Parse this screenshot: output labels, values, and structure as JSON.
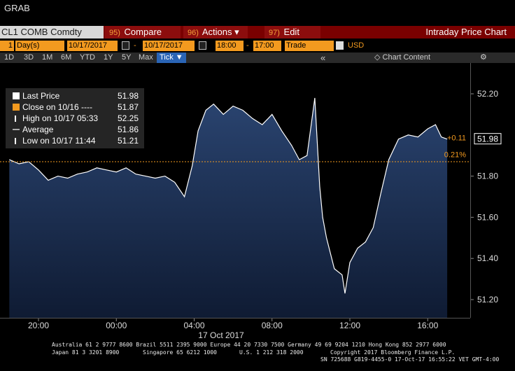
{
  "app": {
    "title": "GRAB"
  },
  "toolbar": {
    "ticker": "CL1 COMB Comdty",
    "compare_num": "95)",
    "compare": "Compare",
    "actions_num": "96)",
    "actions": "Actions",
    "edit_num": "97)",
    "edit": "Edit",
    "chart_title": "Intraday Price Chart"
  },
  "settings": {
    "period_num": "1",
    "period": "Day(s)",
    "date_from": "10/17/2017",
    "date_sep": "-",
    "date_to": "10/17/2017",
    "time_from": "18:00",
    "time_sep": "-",
    "time_to": "17:00",
    "type": "Trade",
    "currency": "USD"
  },
  "range_tabs": [
    "1D",
    "3D",
    "1M",
    "6M",
    "YTD",
    "1Y",
    "5Y",
    "Max"
  ],
  "tick_tab": "Tick ▼",
  "nav": {
    "collapse": "«",
    "chart_content": "Chart Content",
    "gear": "⚙"
  },
  "legend": [
    {
      "label": "Last Price",
      "value": "51.98",
      "color": "#ffffff"
    },
    {
      "label": "Close on 10/16 ----",
      "value": "51.87",
      "color": "#f39a1f"
    },
    {
      "label": "High on 10/17 05:33",
      "value": "52.25",
      "color": "#ffffff"
    },
    {
      "label": "Average",
      "value": "51.86",
      "color": "#aaaaaa"
    },
    {
      "label": "Low on 10/17 11:44",
      "value": "51.21",
      "color": "#ffffff"
    }
  ],
  "chart_data": {
    "type": "line",
    "ylim": [
      51.1,
      52.3
    ],
    "xlim": [
      -5.5,
      17.8
    ],
    "yticks": [
      "52.20",
      "51.80",
      "51.60",
      "51.40",
      "51.20"
    ],
    "ytick_values": [
      52.2,
      51.8,
      51.6,
      51.4,
      51.2
    ],
    "xtick_labels": [
      "20:00",
      "00:00",
      "04:00",
      "08:00",
      "12:00",
      "16:00"
    ],
    "xtick_values": [
      -4,
      0,
      4,
      8,
      12,
      16
    ],
    "date_label": "17 Oct 2017",
    "close_value": 51.87,
    "last_value": "51.98",
    "last_numeric": 51.98,
    "change_abs": "+0.11",
    "change_pct": "0.21%",
    "series": [
      {
        "x": [
          -5.5,
          -5,
          -4.5,
          -4,
          -3.5,
          -3,
          -2.5,
          -2,
          -1.5,
          -1,
          -0.5,
          0,
          0.5,
          1,
          1.5,
          2,
          2.5,
          3,
          3.5,
          3.9,
          4.2,
          4.6,
          5,
          5.5,
          6,
          6.5,
          7,
          7.5,
          8,
          8.5,
          9,
          9.4,
          9.8,
          10.2,
          10.45,
          10.6,
          10.8,
          11.2,
          11.6,
          11.75,
          12,
          12.4,
          12.8,
          13.2,
          13.6,
          14,
          14.5,
          15,
          15.5,
          16,
          16.4,
          16.7,
          17
        ],
        "y": [
          51.88,
          51.86,
          51.87,
          51.83,
          51.78,
          51.8,
          51.79,
          51.81,
          51.82,
          51.84,
          51.83,
          51.82,
          51.84,
          51.81,
          51.8,
          51.79,
          51.8,
          51.77,
          51.7,
          51.85,
          52.02,
          52.12,
          52.15,
          52.1,
          52.14,
          52.12,
          52.08,
          52.05,
          52.1,
          52.02,
          51.95,
          51.88,
          51.9,
          52.18,
          51.75,
          51.6,
          51.5,
          51.35,
          51.32,
          51.23,
          51.38,
          51.45,
          51.48,
          51.55,
          51.72,
          51.88,
          51.98,
          52.0,
          51.99,
          52.03,
          52.05,
          51.99,
          51.98
        ]
      }
    ]
  },
  "footer": {
    "line1": "Australia 61 2 9777 8600 Brazil 5511 2395 9000 Europe 44 20 7330 7500 Germany 49 69 9204 1210 Hong Kong 852 2977 6000",
    "line2a": "Japan 81 3 3201 8900",
    "line2b": "Singapore 65 6212 1000",
    "line2c": "U.S. 1 212 318 2000",
    "line2d": "Copyright 2017 Bloomberg Finance L.P.",
    "line3": "SN 725688 G819-4455-0 17-Oct-17 16:55:22 VET  GMT-4:00"
  }
}
